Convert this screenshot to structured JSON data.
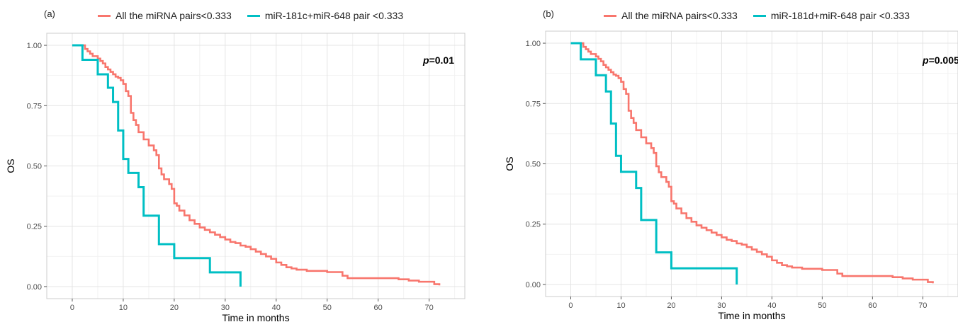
{
  "colors": {
    "series1": "#F8766D",
    "series2": "#00BFC4",
    "grid_major": "#e4e4e4",
    "grid_minor": "#f2f2f2",
    "frame": "#cccccc"
  },
  "chart_data": [
    {
      "type": "line",
      "step": true,
      "panel_label": "(a)",
      "xlabel": "Time in months",
      "ylabel": "OS",
      "xlim": [
        -5,
        77
      ],
      "ylim": [
        -0.05,
        1.05
      ],
      "xticks": [
        "0",
        "10",
        "20",
        "30",
        "40",
        "50",
        "60",
        "70"
      ],
      "yticks": [
        "0.00",
        "0.25",
        "0.50",
        "0.75",
        "1.00"
      ],
      "grid": true,
      "legend_position": "top",
      "annotation": {
        "p_symbol": "p",
        "p_value": "=0.01"
      },
      "series": [
        {
          "name": "All the miRNA pairs<0.333",
          "x": [
            0,
            2,
            2.5,
            3,
            3.5,
            4,
            5,
            5.5,
            6,
            6.5,
            7,
            7.5,
            8,
            8.5,
            9,
            9.5,
            10,
            10.5,
            11,
            11.5,
            12,
            12.5,
            13,
            14,
            15,
            16,
            16.5,
            17,
            17.5,
            18,
            19,
            19.5,
            20,
            20.5,
            21,
            22,
            23,
            24,
            25,
            26,
            27,
            28,
            29,
            30,
            31,
            32,
            33,
            34,
            35,
            36,
            37,
            38,
            39,
            40,
            41,
            42,
            43,
            44,
            45,
            46,
            47,
            48,
            50,
            51,
            53,
            54,
            55,
            56,
            58,
            60,
            62,
            64,
            66,
            68,
            71,
            72
          ],
          "y": [
            1.0,
            1.0,
            0.985,
            0.975,
            0.965,
            0.955,
            0.945,
            0.935,
            0.925,
            0.91,
            0.9,
            0.89,
            0.88,
            0.87,
            0.865,
            0.855,
            0.84,
            0.81,
            0.79,
            0.72,
            0.69,
            0.67,
            0.64,
            0.61,
            0.585,
            0.565,
            0.545,
            0.49,
            0.465,
            0.445,
            0.425,
            0.405,
            0.345,
            0.335,
            0.315,
            0.295,
            0.275,
            0.26,
            0.245,
            0.235,
            0.225,
            0.215,
            0.205,
            0.195,
            0.185,
            0.18,
            0.17,
            0.165,
            0.155,
            0.145,
            0.135,
            0.125,
            0.115,
            0.1,
            0.09,
            0.08,
            0.075,
            0.07,
            0.07,
            0.065,
            0.065,
            0.065,
            0.06,
            0.06,
            0.045,
            0.035,
            0.035,
            0.035,
            0.035,
            0.035,
            0.035,
            0.03,
            0.025,
            0.02,
            0.01,
            0.005
          ]
        },
        {
          "name": "miR-181c+miR-648 pair <0.333",
          "x": [
            0,
            2,
            5,
            7,
            8,
            9,
            10,
            11,
            13,
            14,
            17,
            20,
            27,
            33
          ],
          "y": [
            1.0,
            0.94,
            0.88,
            0.824,
            0.765,
            0.647,
            0.529,
            0.471,
            0.412,
            0.294,
            0.176,
            0.118,
            0.059,
            0.0
          ]
        }
      ]
    },
    {
      "type": "line",
      "step": true,
      "panel_label": "(b)",
      "xlabel": "Time in months",
      "ylabel": "OS",
      "xlim": [
        -5,
        77
      ],
      "ylim": [
        -0.05,
        1.05
      ],
      "xticks": [
        "0",
        "10",
        "20",
        "30",
        "40",
        "50",
        "60",
        "70"
      ],
      "yticks": [
        "0.00",
        "0.25",
        "0.50",
        "0.75",
        "1.00"
      ],
      "grid": true,
      "legend_position": "top",
      "annotation": {
        "p_symbol": "p",
        "p_value": "=0.005"
      },
      "series": [
        {
          "name": "All the miRNA pairs<0.333",
          "x": [
            0,
            2,
            2.5,
            3,
            3.5,
            4,
            5,
            5.5,
            6,
            6.5,
            7,
            7.5,
            8,
            8.5,
            9,
            9.5,
            10,
            10.5,
            11,
            11.5,
            12,
            12.5,
            13,
            14,
            15,
            16,
            16.5,
            17,
            17.5,
            18,
            19,
            19.5,
            20,
            20.5,
            21,
            22,
            23,
            24,
            25,
            26,
            27,
            28,
            29,
            30,
            31,
            32,
            33,
            34,
            35,
            36,
            37,
            38,
            39,
            40,
            41,
            42,
            43,
            44,
            45,
            46,
            47,
            48,
            50,
            51,
            53,
            54,
            55,
            56,
            58,
            60,
            62,
            64,
            66,
            68,
            71,
            72
          ],
          "y": [
            1.0,
            1.0,
            0.985,
            0.975,
            0.965,
            0.955,
            0.945,
            0.935,
            0.925,
            0.91,
            0.9,
            0.89,
            0.88,
            0.87,
            0.865,
            0.855,
            0.84,
            0.81,
            0.79,
            0.72,
            0.69,
            0.67,
            0.64,
            0.61,
            0.585,
            0.565,
            0.545,
            0.49,
            0.465,
            0.445,
            0.425,
            0.405,
            0.345,
            0.335,
            0.315,
            0.295,
            0.275,
            0.26,
            0.245,
            0.235,
            0.225,
            0.215,
            0.205,
            0.195,
            0.185,
            0.18,
            0.17,
            0.165,
            0.155,
            0.145,
            0.135,
            0.125,
            0.115,
            0.1,
            0.09,
            0.08,
            0.075,
            0.07,
            0.07,
            0.065,
            0.065,
            0.065,
            0.06,
            0.06,
            0.045,
            0.035,
            0.035,
            0.035,
            0.035,
            0.035,
            0.035,
            0.03,
            0.025,
            0.02,
            0.01,
            0.005
          ]
        },
        {
          "name": "miR-181d+miR-648 pair <0.333",
          "x": [
            0,
            2,
            5,
            7,
            8,
            9,
            10,
            13,
            14,
            17,
            20,
            33
          ],
          "y": [
            1.0,
            0.933,
            0.867,
            0.8,
            0.667,
            0.533,
            0.467,
            0.4,
            0.267,
            0.133,
            0.067,
            0.0
          ]
        }
      ]
    }
  ]
}
